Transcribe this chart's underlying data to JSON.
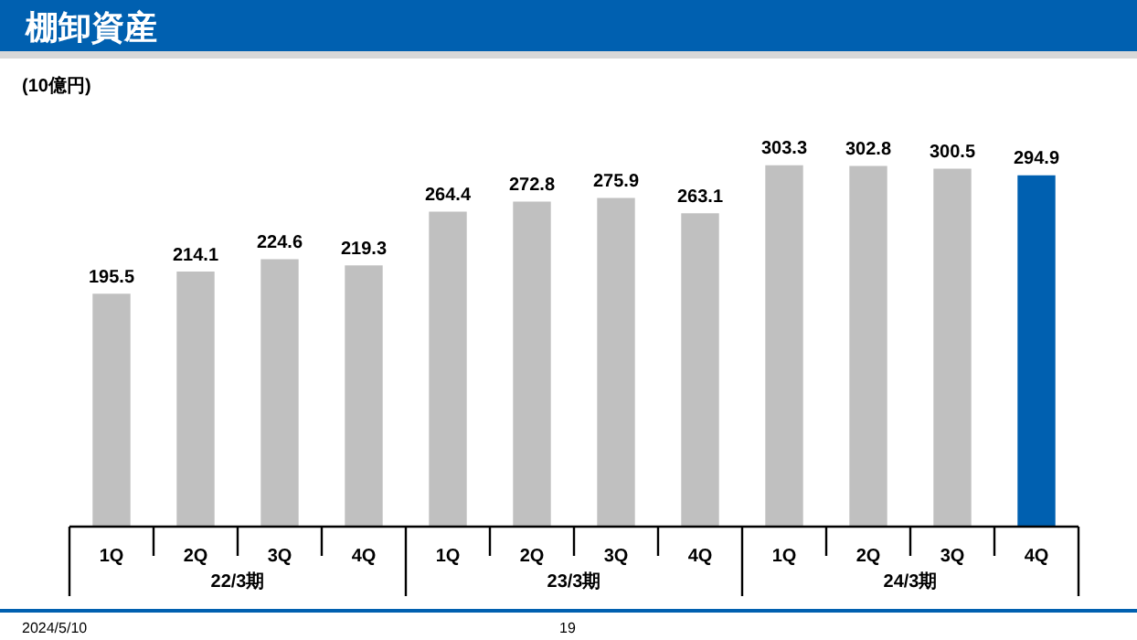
{
  "chart_data": {
    "type": "bar",
    "title": "棚卸資産",
    "ylabel": "(10億円)",
    "categories": [
      "1Q",
      "2Q",
      "3Q",
      "4Q",
      "1Q",
      "2Q",
      "3Q",
      "4Q",
      "1Q",
      "2Q",
      "3Q",
      "4Q"
    ],
    "values": [
      195.5,
      214.1,
      224.6,
      219.3,
      264.4,
      272.8,
      275.9,
      263.1,
      303.3,
      302.8,
      300.5,
      294.9
    ],
    "colors": [
      "#c0c0c0",
      "#c0c0c0",
      "#c0c0c0",
      "#c0c0c0",
      "#c0c0c0",
      "#c0c0c0",
      "#c0c0c0",
      "#c0c0c0",
      "#c0c0c0",
      "#c0c0c0",
      "#c0c0c0",
      "#0060b0"
    ],
    "data_labels": true,
    "grid": false,
    "legend": false,
    "annotations": [
      "22/3期",
      "23/3期",
      "24/3期",
      "2024/5/10",
      "19"
    ]
  }
}
